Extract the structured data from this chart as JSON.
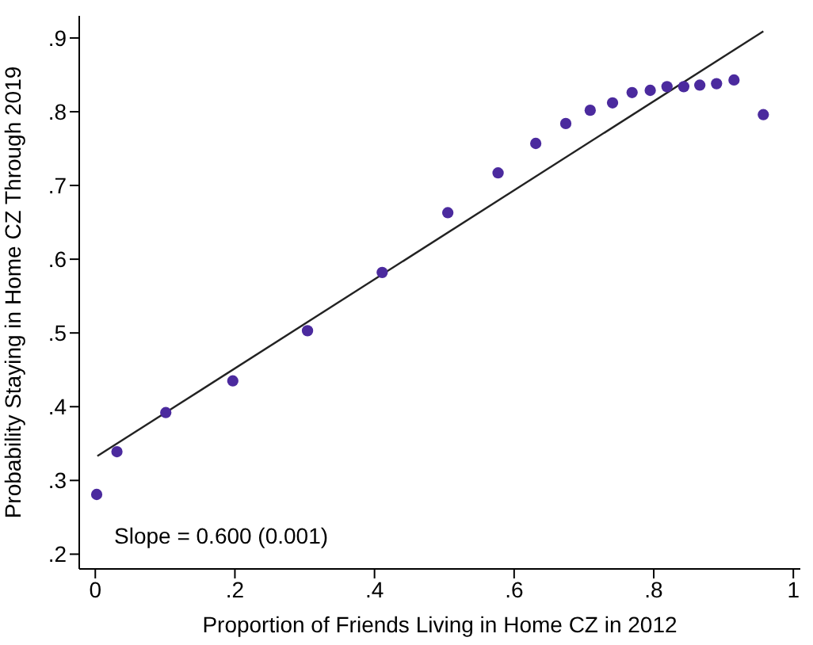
{
  "chart_data": {
    "type": "scatter",
    "xlabel": "Proportion of Friends Living in Home CZ in 2012",
    "ylabel": "Probability Staying in Home CZ Through 2019",
    "annotations": [
      "Slope = 0.600 (0.001)"
    ],
    "xlim": [
      -0.023,
      1.01
    ],
    "ylim": [
      0.18,
      0.93
    ],
    "xticks": [
      0,
      {
        "value": 0.2,
        "label": ".2"
      },
      {
        "value": 0.4,
        "label": ".4"
      },
      {
        "value": 0.6,
        "label": ".6"
      },
      {
        "value": 0.8,
        "label": ".8"
      },
      1
    ],
    "yticks": [
      {
        "value": 0.2,
        "label": ".2"
      },
      {
        "value": 0.3,
        "label": ".3"
      },
      {
        "value": 0.4,
        "label": ".4"
      },
      {
        "value": 0.5,
        "label": ".5"
      },
      {
        "value": 0.6,
        "label": ".6"
      },
      {
        "value": 0.7,
        "label": ".7"
      },
      {
        "value": 0.8,
        "label": ".8"
      },
      {
        "value": 0.9,
        "label": ".9"
      }
    ],
    "grid": false,
    "marker": "circle",
    "series": [
      {
        "color": "#4b2a9e",
        "x": [
          0.002,
          0.031,
          0.101,
          0.197,
          0.304,
          0.411,
          0.505,
          0.577,
          0.631,
          0.674,
          0.709,
          0.741,
          0.769,
          0.795,
          0.819,
          0.843,
          0.866,
          0.89,
          0.915,
          0.957
        ],
        "values": [
          0.281,
          0.339,
          0.392,
          0.435,
          0.503,
          0.582,
          0.663,
          0.717,
          0.757,
          0.784,
          0.802,
          0.812,
          0.826,
          0.829,
          0.834,
          0.834,
          0.836,
          0.838,
          0.843,
          0.796
        ]
      },
      {
        "type": "line",
        "color": "#222222",
        "line_style": "solid",
        "marker": "none",
        "x": [
          0.003,
          0.957
        ],
        "values": [
          0.333,
          0.909
        ]
      }
    ]
  }
}
